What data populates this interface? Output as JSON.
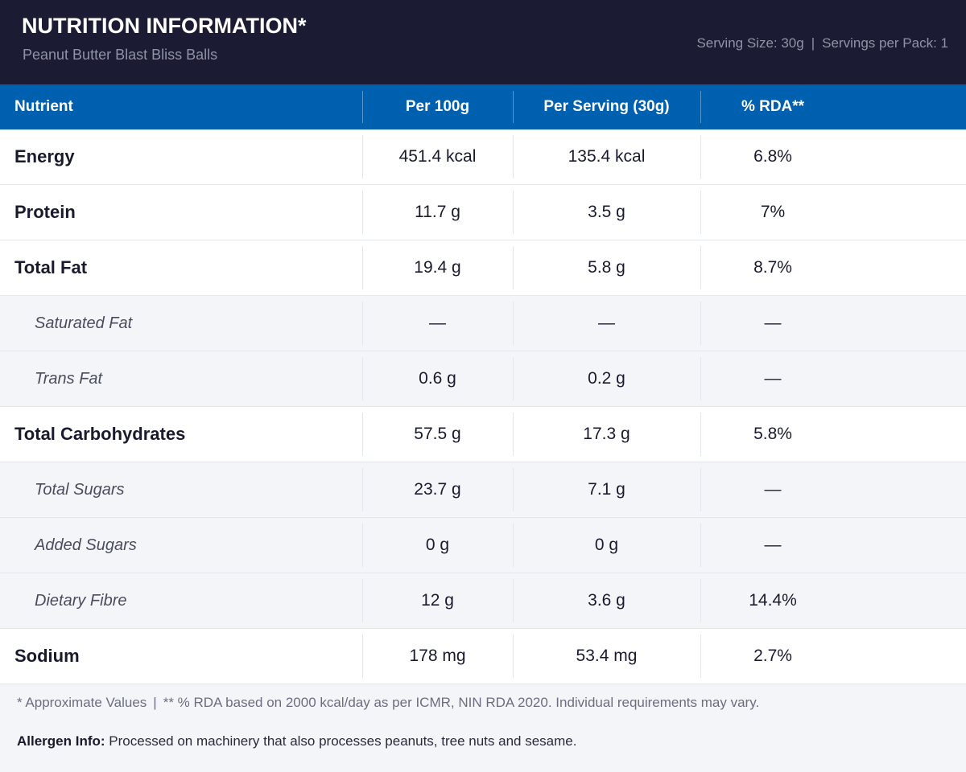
{
  "header": {
    "title": "NUTRITION INFORMATION*",
    "subtitle": "Peanut Butter Blast Bliss Balls",
    "serving_size": "Serving Size: 30g",
    "separator": "|",
    "servings_per_pack": "Servings per Pack: 1"
  },
  "table": {
    "columns": [
      "Nutrient",
      "Per 100g",
      "Per Serving (30g)",
      "% RDA**"
    ],
    "rows": [
      {
        "nutrient": "Energy",
        "per_100g": "451.4 kcal",
        "per_serving": "135.4 kcal",
        "rda": "6.8%",
        "sub": false
      },
      {
        "nutrient": "Protein",
        "per_100g": "11.7 g",
        "per_serving": "3.5 g",
        "rda": "7%",
        "sub": false
      },
      {
        "nutrient": "Total Fat",
        "per_100g": "19.4 g",
        "per_serving": "5.8 g",
        "rda": "8.7%",
        "sub": false
      },
      {
        "nutrient": "Saturated Fat",
        "per_100g": "—",
        "per_serving": "—",
        "rda": "—",
        "sub": true
      },
      {
        "nutrient": "Trans Fat",
        "per_100g": "0.6 g",
        "per_serving": "0.2 g",
        "rda": "—",
        "sub": true
      },
      {
        "nutrient": "Total Carbohydrates",
        "per_100g": "57.5 g",
        "per_serving": "17.3 g",
        "rda": "5.8%",
        "sub": false
      },
      {
        "nutrient": "Total Sugars",
        "per_100g": "23.7 g",
        "per_serving": "7.1 g",
        "rda": "—",
        "sub": true
      },
      {
        "nutrient": "Added Sugars",
        "per_100g": "0 g",
        "per_serving": "0 g",
        "rda": "—",
        "sub": true
      },
      {
        "nutrient": "Dietary Fibre",
        "per_100g": "12 g",
        "per_serving": "3.6 g",
        "rda": "14.4%",
        "sub": true
      },
      {
        "nutrient": "Sodium",
        "per_100g": "178 mg",
        "per_serving": "53.4 mg",
        "rda": "2.7%",
        "sub": false
      }
    ]
  },
  "footer": {
    "approx_note": "* Approximate Values",
    "separator": "|",
    "rda_note": "** % RDA based on 2000 kcal/day as per ICMR, NIN RDA 2020. Individual requirements may vary.",
    "allergen_label": "Allergen Info:",
    "allergen_text": "Processed on machinery that also processes peanuts, tree nuts and sesame."
  },
  "colors": {
    "header_bg": "#1b1c33",
    "table_head_bg": "#0060b0",
    "sub_row_bg": "#f4f5f9"
  }
}
